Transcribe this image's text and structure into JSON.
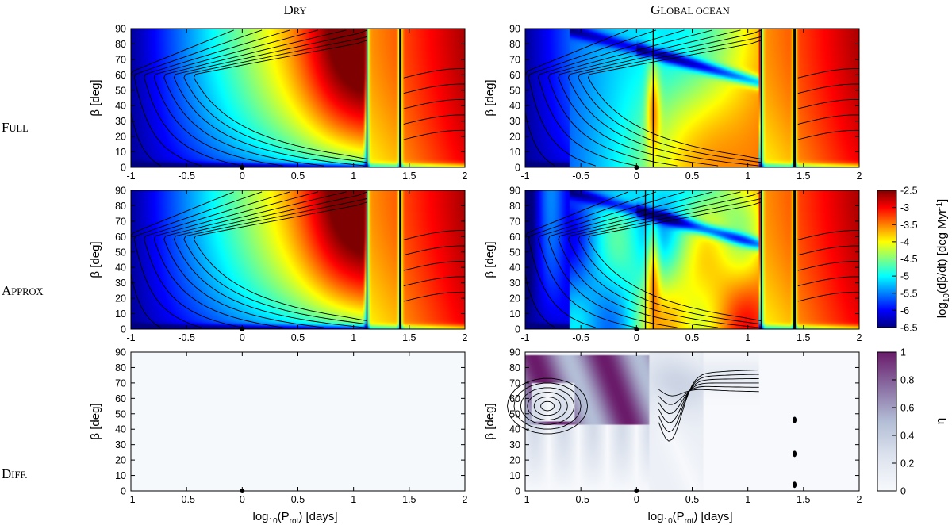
{
  "figure": {
    "columns": [
      "Dry",
      "Global ocean"
    ],
    "rows": [
      "Full",
      "Approx",
      "Diff."
    ]
  },
  "colors": {
    "jet": [
      "#00007f",
      "#0000ff",
      "#0080ff",
      "#00ffff",
      "#80ff80",
      "#ffff00",
      "#ff8000",
      "#ff0000",
      "#7f0000"
    ],
    "diff": [
      "#f7f9fc",
      "#c9d3e3",
      "#9aa8c8",
      "#6c5a92",
      "#6a1b6a"
    ],
    "contour": "#000000"
  },
  "chart_data": [
    {
      "type": "heatmap",
      "id": "dry-full",
      "column": "Dry",
      "row": "Full",
      "x_ticks": [
        "-1",
        "-0.5",
        "0",
        "0.5",
        "1",
        "1.5",
        "2"
      ],
      "y_ticks": [
        "0",
        "10",
        "20",
        "30",
        "40",
        "50",
        "60",
        "70",
        "80",
        "90"
      ],
      "xlim": [
        -1,
        2
      ],
      "ylim": [
        0,
        90
      ],
      "ylabel": "β [deg]",
      "xlabel": "",
      "marker": {
        "x": 0,
        "y": 0
      },
      "resonances": [
        1.12,
        1.42
      ],
      "color_range": [
        -6.5,
        -2.5
      ],
      "ocean": false
    },
    {
      "type": "heatmap",
      "id": "ocean-full",
      "column": "Global ocean",
      "row": "Full",
      "x_ticks": [
        "-1",
        "-0.5",
        "0",
        "0.5",
        "1",
        "1.5",
        "2"
      ],
      "y_ticks": [
        "0",
        "10",
        "20",
        "30",
        "40",
        "50",
        "60",
        "70",
        "80",
        "90"
      ],
      "xlim": [
        -1,
        2
      ],
      "ylim": [
        0,
        90
      ],
      "ylabel": "β [deg]",
      "xlabel": "",
      "marker": {
        "x": 0,
        "y": 0
      },
      "resonances": [
        0.15,
        1.12,
        1.42
      ],
      "color_range": [
        -6.5,
        -2.5
      ],
      "ocean": true
    },
    {
      "type": "heatmap",
      "id": "dry-approx",
      "column": "Dry",
      "row": "Approx",
      "x_ticks": [
        "-1",
        "-0.5",
        "0",
        "0.5",
        "1",
        "1.5",
        "2"
      ],
      "y_ticks": [
        "0",
        "10",
        "20",
        "30",
        "40",
        "50",
        "60",
        "70",
        "80",
        "90"
      ],
      "xlim": [
        -1,
        2
      ],
      "ylim": [
        0,
        90
      ],
      "ylabel": "β [deg]",
      "xlabel": "",
      "marker": {
        "x": 0,
        "y": 0
      },
      "resonances": [
        1.12,
        1.42
      ],
      "color_range": [
        -6.5,
        -2.5
      ],
      "ocean": false
    },
    {
      "type": "heatmap",
      "id": "ocean-approx",
      "column": "Global ocean",
      "row": "Approx",
      "x_ticks": [
        "-1",
        "-0.5",
        "0",
        "0.5",
        "1",
        "1.5",
        "2"
      ],
      "y_ticks": [
        "0",
        "10",
        "20",
        "30",
        "40",
        "50",
        "60",
        "70",
        "80",
        "90"
      ],
      "xlim": [
        -1,
        2
      ],
      "ylim": [
        0,
        90
      ],
      "ylabel": "β [deg]",
      "xlabel": "",
      "marker": {
        "x": 0,
        "y": 0
      },
      "resonances": [
        0.08,
        0.15,
        1.12,
        1.42
      ],
      "color_range": [
        -6.5,
        -2.5
      ],
      "ocean": true
    },
    {
      "type": "heatmap",
      "id": "dry-diff",
      "column": "Dry",
      "row": "Diff.",
      "x_ticks": [
        "-1",
        "-0.5",
        "0",
        "0.5",
        "1",
        "1.5",
        "2"
      ],
      "y_ticks": [
        "0",
        "10",
        "20",
        "30",
        "40",
        "50",
        "60",
        "70",
        "80",
        "90"
      ],
      "xlim": [
        -1,
        2
      ],
      "ylim": [
        0,
        90
      ],
      "ylabel": "β [deg]",
      "xlabel": "log10(Prot) [days]",
      "marker": {
        "x": 0,
        "y": 0
      },
      "color_range": [
        0,
        1
      ],
      "ocean": false
    },
    {
      "type": "heatmap",
      "id": "ocean-diff",
      "column": "Global ocean",
      "row": "Diff.",
      "x_ticks": [
        "-1",
        "-0.5",
        "0",
        "0.5",
        "1",
        "1.5",
        "2"
      ],
      "y_ticks": [
        "0",
        "10",
        "20",
        "30",
        "40",
        "50",
        "60",
        "70",
        "80",
        "90"
      ],
      "xlim": [
        -1,
        2
      ],
      "ylim": [
        0,
        90
      ],
      "ylabel": "β [deg]",
      "xlabel": "log10(Prot) [days]",
      "marker": {
        "x": 0,
        "y": 0
      },
      "color_range": [
        0,
        1
      ],
      "ocean": true,
      "spots": [
        {
          "x": 1.42,
          "y": 46
        },
        {
          "x": 1.42,
          "y": 24
        },
        {
          "x": 1.42,
          "y": 4
        }
      ]
    }
  ],
  "colorbars": [
    {
      "id": "rate",
      "label_main": "log",
      "label_sub": "10",
      "label_rest": "(dβ/dt) [deg Myr",
      "label_sup": "-1",
      "label_end": "]",
      "range": [
        -6.5,
        -2.5
      ],
      "ticks": [
        "-2.5",
        "-3",
        "-3.5",
        "-4",
        "-4.5",
        "-5",
        "-5.5",
        "-6",
        "-6.5"
      ]
    },
    {
      "id": "eta",
      "label": "η",
      "range": [
        0,
        1
      ],
      "ticks": [
        "1",
        "0.8",
        "0.6",
        "0.4",
        "0.2",
        "0"
      ]
    }
  ],
  "xlabel": {
    "main": "log",
    "sub": "10",
    "rest": "(P",
    "sub2": "rot",
    "end": ") [days]"
  }
}
